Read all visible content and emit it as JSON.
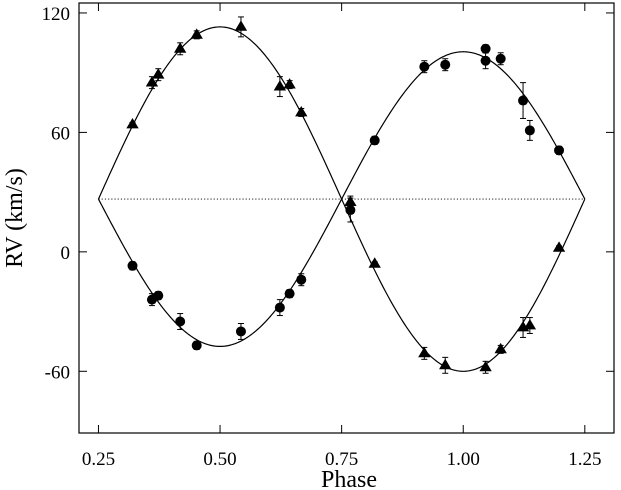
{
  "chart_data": {
    "type": "scatter",
    "title": "",
    "xlabel": "Phase",
    "ylabel": "RV (km/s)",
    "xlim": [
      0.21,
      1.31
    ],
    "ylim": [
      -91,
      125
    ],
    "xticks": [
      0.25,
      0.5,
      0.75,
      1.0,
      1.25
    ],
    "xtick_labels": [
      "0.25",
      "0.50",
      "0.75",
      "1.00",
      "1.25"
    ],
    "yticks": [
      -60,
      0,
      60,
      120
    ],
    "ytick_labels": [
      "-60",
      "0",
      "60",
      "120"
    ],
    "grid": false,
    "systemic_velocity": 26.5,
    "orbit_curves": [
      {
        "marker": "triangle",
        "amplitude": 86.5,
        "phase_range": [
          0.25,
          1.25
        ]
      },
      {
        "marker": "circle",
        "amplitude": -74,
        "phase_range": [
          0.25,
          1.25
        ]
      }
    ],
    "series": [
      {
        "marker": "triangle",
        "points": [
          {
            "x": 0.32,
            "y": 64,
            "err": 1
          },
          {
            "x": 0.36,
            "y": 85,
            "err": 3
          },
          {
            "x": 0.373,
            "y": 89,
            "err": 3
          },
          {
            "x": 0.418,
            "y": 102,
            "err": 3
          },
          {
            "x": 0.452,
            "y": 109,
            "err": 2
          },
          {
            "x": 0.543,
            "y": 113,
            "err": 5
          },
          {
            "x": 0.623,
            "y": 83,
            "err": 5
          },
          {
            "x": 0.643,
            "y": 84,
            "err": 2
          },
          {
            "x": 0.667,
            "y": 70,
            "err": 2
          },
          {
            "x": 0.768,
            "y": 25,
            "err": 3
          },
          {
            "x": 0.818,
            "y": -6,
            "err": 1
          },
          {
            "x": 0.92,
            "y": -51,
            "err": 3
          },
          {
            "x": 0.963,
            "y": -57,
            "err": 4
          },
          {
            "x": 1.046,
            "y": -58,
            "err": 3
          },
          {
            "x": 1.077,
            "y": -49,
            "err": 2
          },
          {
            "x": 1.123,
            "y": -38,
            "err": 5
          },
          {
            "x": 1.137,
            "y": -37,
            "err": 4
          },
          {
            "x": 1.197,
            "y": 2,
            "err": 1
          }
        ]
      },
      {
        "marker": "circle",
        "points": [
          {
            "x": 0.32,
            "y": -7,
            "err": 2
          },
          {
            "x": 0.36,
            "y": -24,
            "err": 3
          },
          {
            "x": 0.373,
            "y": -22,
            "err": 2
          },
          {
            "x": 0.418,
            "y": -35,
            "err": 4
          },
          {
            "x": 0.452,
            "y": -47,
            "err": 2
          },
          {
            "x": 0.543,
            "y": -40,
            "err": 4
          },
          {
            "x": 0.623,
            "y": -28,
            "err": 4
          },
          {
            "x": 0.643,
            "y": -21,
            "err": 2
          },
          {
            "x": 0.667,
            "y": -14,
            "err": 3
          },
          {
            "x": 0.768,
            "y": 21,
            "err": 6
          },
          {
            "x": 0.818,
            "y": 56,
            "err": 2
          },
          {
            "x": 0.92,
            "y": 93,
            "err": 3
          },
          {
            "x": 0.963,
            "y": 94,
            "err": 3
          },
          {
            "x": 1.046,
            "y": 102,
            "err": 2
          },
          {
            "x": 1.046,
            "y": 96,
            "err": 4
          },
          {
            "x": 1.077,
            "y": 97,
            "err": 3
          },
          {
            "x": 1.123,
            "y": 76,
            "err": 9
          },
          {
            "x": 1.137,
            "y": 61,
            "err": 5
          },
          {
            "x": 1.197,
            "y": 51,
            "err": 2
          }
        ]
      }
    ]
  }
}
